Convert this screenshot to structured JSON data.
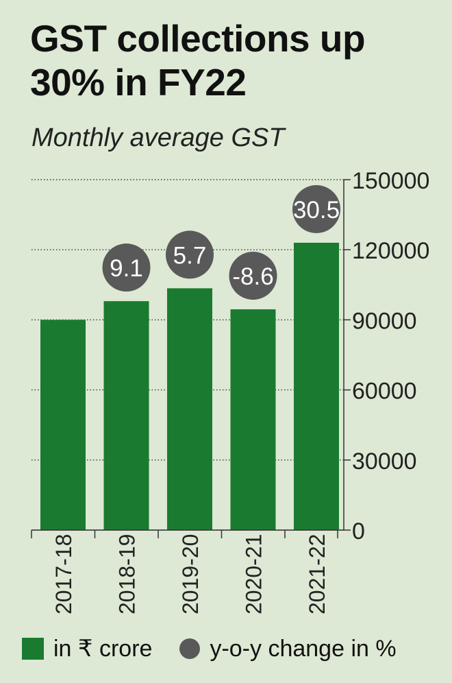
{
  "header": {
    "title": "GST collections up 30% in FY22",
    "subtitle": "Monthly average GST"
  },
  "legend": {
    "bars_label": "in ₹ crore",
    "dots_label": "y-o-y change in %"
  },
  "colors": {
    "bar": "#1a7b30",
    "bubble": "#595959",
    "background": "#dde9d4"
  },
  "chart_data": {
    "type": "bar",
    "categories": [
      "2017-18",
      "2018-19",
      "2019-20",
      "2020-21",
      "2021-22"
    ],
    "series": [
      {
        "name": "in ₹ crore",
        "values": [
          90000,
          98000,
          103500,
          94500,
          123000
        ]
      },
      {
        "name": "y-o-y change in %",
        "values": [
          null,
          9.1,
          5.7,
          -8.6,
          30.5
        ]
      }
    ],
    "y_ticks": [
      0,
      30000,
      60000,
      90000,
      120000,
      150000
    ],
    "ylim": [
      0,
      150000
    ],
    "y_axis_side": "right",
    "grid": "dotted horizontal",
    "legend_position": "bottom"
  }
}
